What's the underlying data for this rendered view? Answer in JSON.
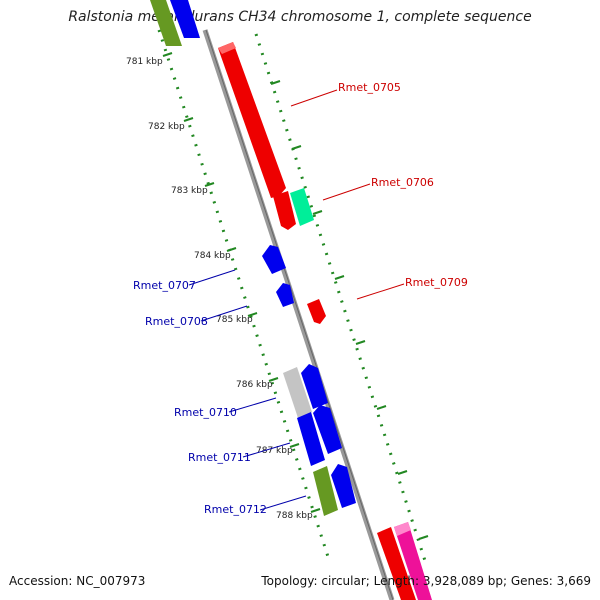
{
  "title": "Ralstonia metallidurans CH34 chromosome 1, complete sequence",
  "footer": {
    "accession": "Accession: NC_007973",
    "summary": "Topology: circular; Length: 3,928,089 bp; Genes: 3,669"
  },
  "ticks": [
    "781 kbp",
    "782 kbp",
    "783 kbp",
    "784 kbp",
    "785 kbp",
    "786 kbp",
    "787 kbp",
    "788 kbp"
  ],
  "gene_labels": [
    {
      "name": "Rmet_0705",
      "color": "#cc0000"
    },
    {
      "name": "Rmet_0706",
      "color": "#cc0000"
    },
    {
      "name": "Rmet_0709",
      "color": "#cc0000"
    },
    {
      "name": "Rmet_0707",
      "color": "#0000aa"
    },
    {
      "name": "Rmet_0708",
      "color": "#0000aa"
    },
    {
      "name": "Rmet_0710",
      "color": "#0000aa"
    },
    {
      "name": "Rmet_0711",
      "color": "#0000aa"
    },
    {
      "name": "Rmet_0712",
      "color": "#0000aa"
    }
  ],
  "colors": {
    "forward_cds": "#ee0000",
    "reverse_cds": "#0000ee",
    "backbone": "#888888",
    "tick": "#228822",
    "other_feature": "#00ee99",
    "rna": "#669922",
    "pseudo": "#bbbbbb",
    "misc": "#ee1199"
  }
}
